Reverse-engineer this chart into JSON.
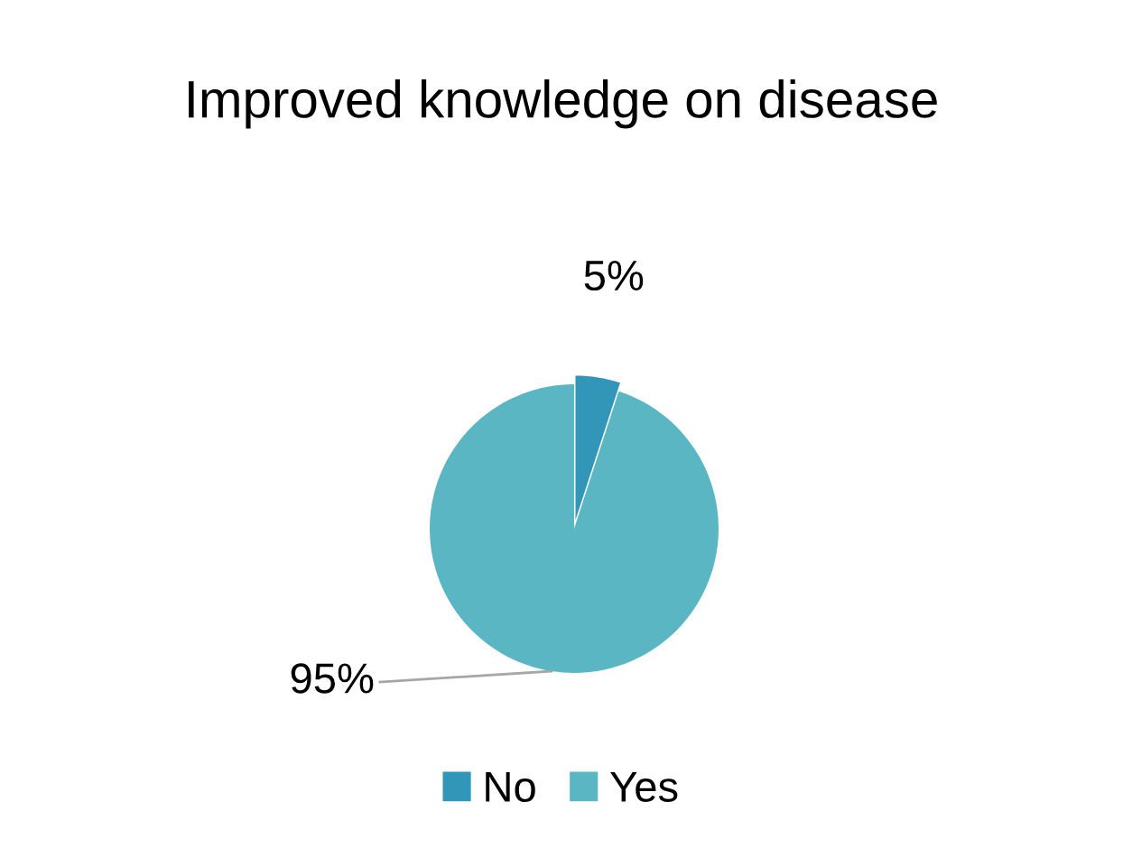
{
  "chart_data": {
    "type": "pie",
    "title": "Improved knowledge on disease",
    "categories": [
      "No",
      "Yes"
    ],
    "values": [
      5,
      95
    ],
    "colors": [
      "#3196b7",
      "#5ab6c2"
    ],
    "value_labels": [
      "5%",
      "95%"
    ],
    "legend": "bottom"
  }
}
